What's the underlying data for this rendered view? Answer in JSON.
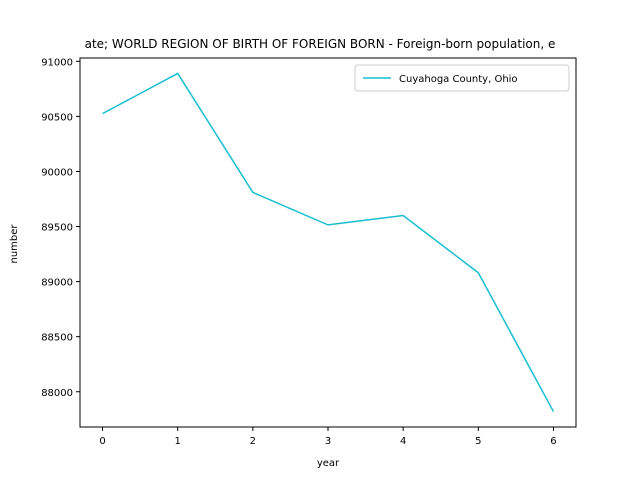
{
  "chart_data": {
    "type": "line",
    "title": "ate; WORLD REGION OF BIRTH OF FOREIGN BORN - Foreign-born population, e",
    "xlabel": "year",
    "ylabel": "number",
    "x": [
      0,
      1,
      2,
      3,
      4,
      5,
      6
    ],
    "xlim": [
      -0.3,
      6.3
    ],
    "ylim": [
      87680,
      91030
    ],
    "xticks": [
      0,
      1,
      2,
      3,
      4,
      5,
      6
    ],
    "yticks": [
      88000,
      88500,
      89000,
      89500,
      90000,
      90500,
      91000
    ],
    "grid": false,
    "legend_position": "top-right",
    "series": [
      {
        "name": "Cuyahoga County, Ohio",
        "color": "#17becf",
        "values": [
          90525,
          90890,
          89810,
          89515,
          89600,
          89080,
          87820
        ]
      }
    ]
  }
}
